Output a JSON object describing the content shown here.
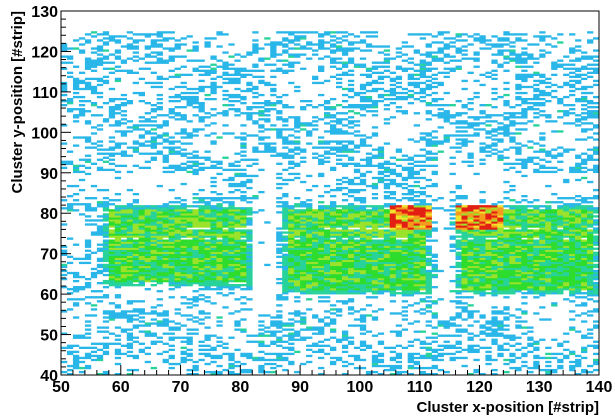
{
  "chart_data": {
    "type": "heatmap",
    "title": "",
    "xlabel": "Cluster x-position [#strip]",
    "ylabel": "Cluster y-position [#strip]",
    "xlim": [
      50,
      140
    ],
    "ylim": [
      40,
      130
    ],
    "x_ticks": [
      "50",
      "60",
      "70",
      "80",
      "90",
      "100",
      "110",
      "120",
      "130",
      "140"
    ],
    "y_ticks": [
      "40",
      "50",
      "60",
      "70",
      "80",
      "90",
      "100",
      "110",
      "120",
      "130"
    ],
    "grid": false,
    "legend": "none",
    "colormap": [
      "#ffffff",
      "#29b6e8",
      "#27d39a",
      "#2edc2e",
      "#9be22a",
      "#f3e22a",
      "#f59a1d",
      "#e31e12"
    ],
    "regions": [
      {
        "name": "background-blobs",
        "level": 1,
        "x": [
          50,
          140
        ],
        "y": [
          40,
          125
        ]
      },
      {
        "name": "dense-block-left",
        "level": 3,
        "x": [
          57,
          82
        ],
        "y": [
          62,
          82
        ]
      },
      {
        "name": "dense-block-middle",
        "level": 3,
        "x": [
          87,
          112
        ],
        "y": [
          60,
          82
        ]
      },
      {
        "name": "dense-block-right",
        "level": 3,
        "x": [
          116,
          140
        ],
        "y": [
          60,
          82
        ]
      },
      {
        "name": "hotspot-middle",
        "level": 7,
        "x": [
          105,
          112
        ],
        "y": [
          76,
          82
        ]
      },
      {
        "name": "hotspot-right",
        "level": 7,
        "x": [
          116,
          124
        ],
        "y": [
          76,
          82
        ]
      }
    ]
  }
}
